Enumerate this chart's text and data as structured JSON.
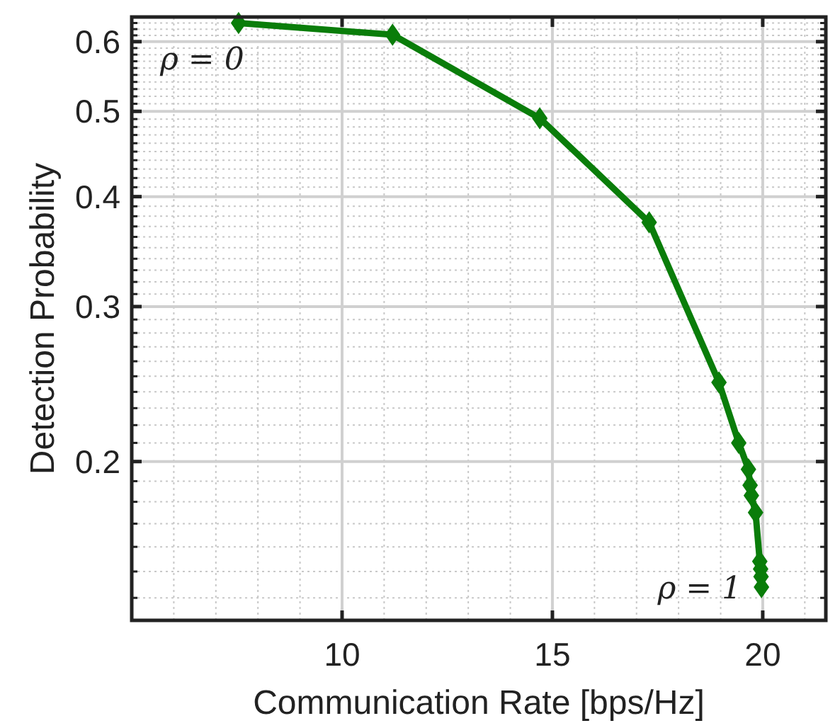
{
  "chart_data": {
    "type": "line",
    "xlabel": "Communication Rate [bps/Hz]",
    "ylabel": "Detection Probability",
    "log": "y",
    "grid": true,
    "marker": "diamond",
    "line_style": "solid",
    "xlim": [
      5,
      21.5
    ],
    "xticks": [
      10,
      15,
      20
    ],
    "ylim": [
      0.132,
      0.64
    ],
    "yticks": [
      0.2,
      0.3,
      0.4,
      0.5,
      0.6
    ],
    "annotations": [
      "ρ = 0",
      "ρ = 1"
    ],
    "series": [
      {
        "color": "#0a7d0a",
        "x": [
          7.54,
          11.2,
          14.7,
          17.3,
          18.96,
          19.43,
          19.66,
          19.7,
          19.73,
          19.83,
          19.93,
          19.95,
          19.96,
          19.97
        ],
        "values": [
          0.63,
          0.611,
          0.491,
          0.374,
          0.246,
          0.21,
          0.196,
          0.188,
          0.183,
          0.175,
          0.154,
          0.151,
          0.148,
          0.144
        ]
      }
    ]
  }
}
